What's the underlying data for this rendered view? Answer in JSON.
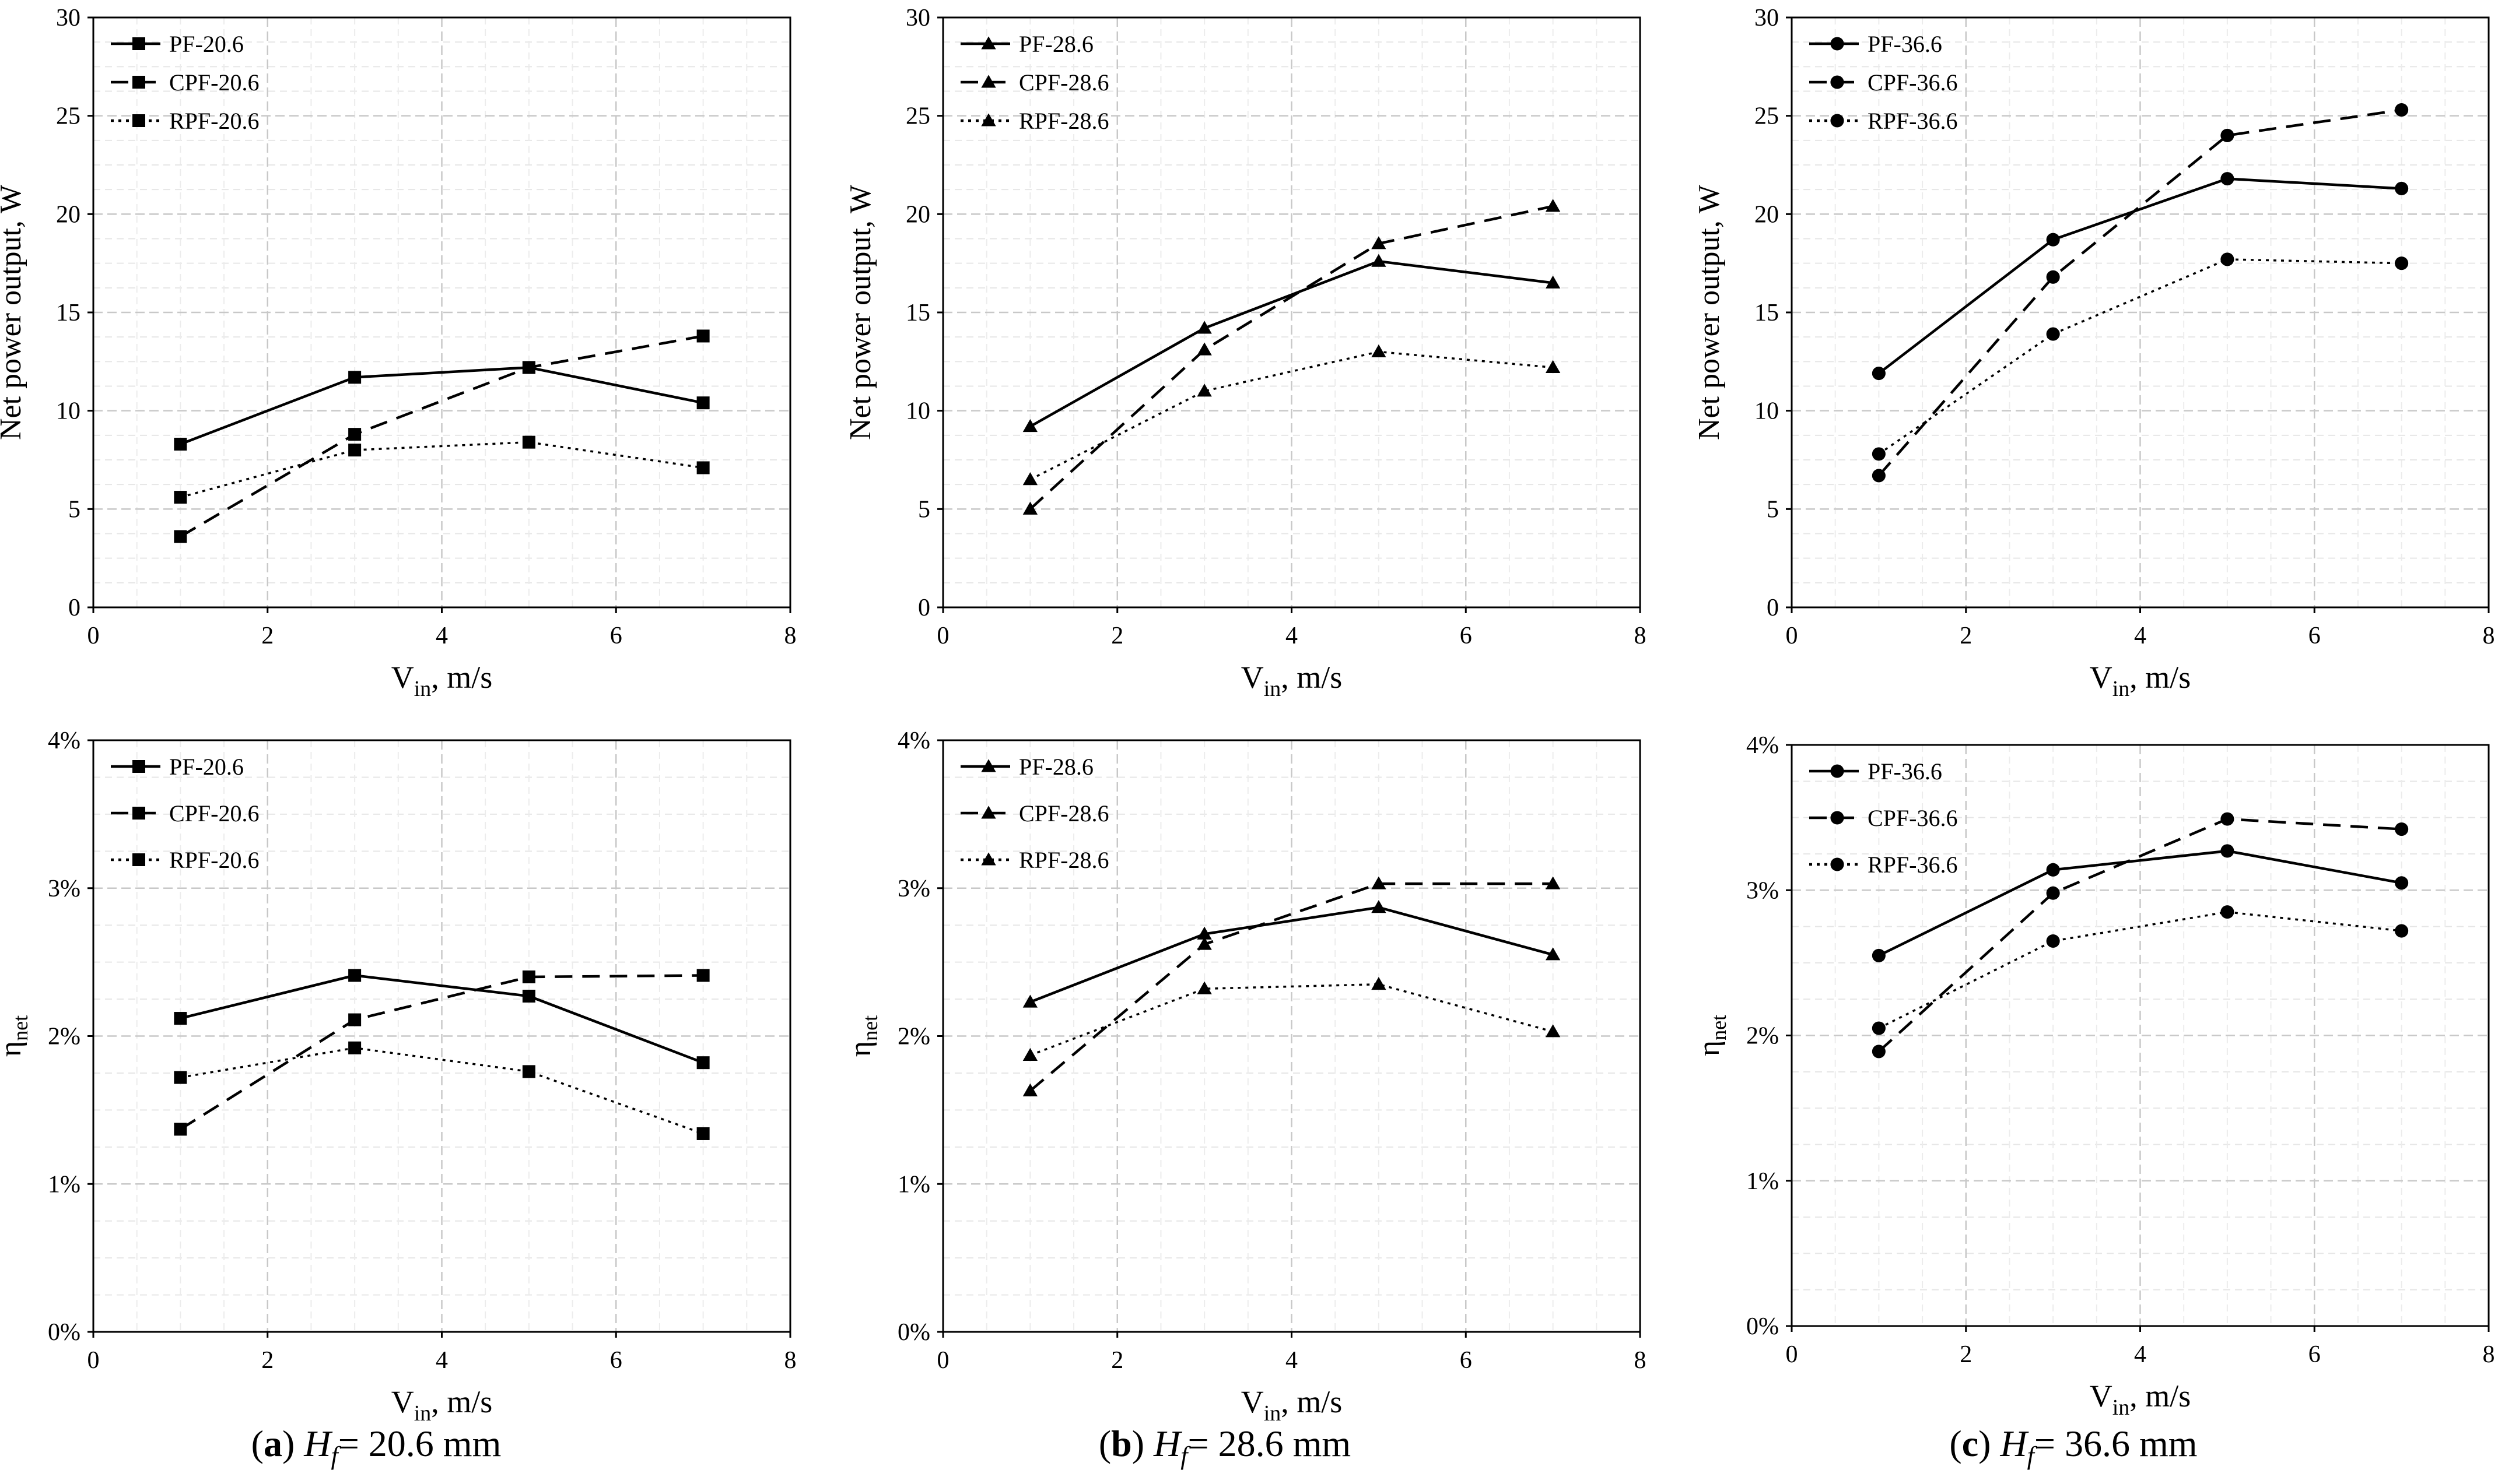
{
  "chart_data": [
    {
      "type": "line",
      "panel": "a-top",
      "xlabel": "V",
      "xlabel_sub": "in",
      "xlabel_unit": ", m/s",
      "ylabel": "Net power output, W",
      "xlim": [
        0,
        8
      ],
      "ylim": [
        0,
        30
      ],
      "xticks": [
        "0",
        "2",
        "4",
        "6",
        "8"
      ],
      "yticks": [
        "0",
        "5",
        "10",
        "15",
        "20",
        "25",
        "30"
      ],
      "x": [
        1,
        3,
        5,
        7
      ],
      "marker": "square",
      "legend": "top-left",
      "series": [
        {
          "name": "PF-20.6",
          "dash": "solid",
          "values": [
            8.3,
            11.7,
            12.2,
            10.4
          ]
        },
        {
          "name": "CPF-20.6",
          "dash": "dashed",
          "values": [
            3.6,
            8.8,
            12.2,
            13.8
          ]
        },
        {
          "name": "RPF-20.6",
          "dash": "dotted",
          "values": [
            5.6,
            8.0,
            8.4,
            7.1
          ]
        }
      ]
    },
    {
      "type": "line",
      "panel": "b-top",
      "xlabel": "V",
      "xlabel_sub": "in",
      "xlabel_unit": ", m/s",
      "ylabel": "Net power output, W",
      "xlim": [
        0,
        8
      ],
      "ylim": [
        0,
        30
      ],
      "xticks": [
        "0",
        "2",
        "4",
        "6",
        "8"
      ],
      "yticks": [
        "0",
        "5",
        "10",
        "15",
        "20",
        "25",
        "30"
      ],
      "x": [
        1,
        3,
        5,
        7
      ],
      "marker": "triangle",
      "legend": "top-left",
      "series": [
        {
          "name": "PF-28.6",
          "dash": "solid",
          "values": [
            9.2,
            14.2,
            17.6,
            16.5
          ]
        },
        {
          "name": "CPF-28.6",
          "dash": "dashed",
          "values": [
            5.0,
            13.1,
            18.5,
            20.4
          ]
        },
        {
          "name": "RPF-28.6",
          "dash": "dotted",
          "values": [
            6.5,
            11.0,
            13.0,
            12.2
          ]
        }
      ]
    },
    {
      "type": "line",
      "panel": "c-top",
      "xlabel": "V",
      "xlabel_sub": "in",
      "xlabel_unit": ", m/s",
      "ylabel": "Net power output, W",
      "xlim": [
        0,
        8
      ],
      "ylim": [
        0,
        30
      ],
      "xticks": [
        "0",
        "2",
        "4",
        "6",
        "8"
      ],
      "yticks": [
        "0",
        "5",
        "10",
        "15",
        "20",
        "25",
        "30"
      ],
      "x": [
        1,
        3,
        5,
        7
      ],
      "marker": "circle",
      "legend": "top-left",
      "series": [
        {
          "name": "PF-36.6",
          "dash": "solid",
          "values": [
            11.9,
            18.7,
            21.8,
            21.3
          ]
        },
        {
          "name": "CPF-36.6",
          "dash": "dashed",
          "values": [
            6.7,
            16.8,
            24.0,
            25.3
          ]
        },
        {
          "name": "RPF-36.6",
          "dash": "dotted",
          "values": [
            7.8,
            13.9,
            17.7,
            17.5
          ]
        }
      ]
    },
    {
      "type": "line",
      "panel": "a-bottom",
      "xlabel": "V",
      "xlabel_sub": "in",
      "xlabel_unit": ", m/s",
      "ylabel": "η",
      "ylabel_sub": "net",
      "xlim": [
        0,
        8
      ],
      "ylim": [
        0,
        4
      ],
      "xticks": [
        "0",
        "2",
        "4",
        "6",
        "8"
      ],
      "yticks": [
        "0%",
        "1%",
        "2%",
        "3%",
        "4%"
      ],
      "x": [
        1,
        3,
        5,
        7
      ],
      "marker": "square",
      "legend": "top-left",
      "series": [
        {
          "name": "PF-20.6",
          "dash": "solid",
          "values": [
            2.12,
            2.41,
            2.27,
            1.82
          ]
        },
        {
          "name": "CPF-20.6",
          "dash": "dashed",
          "values": [
            1.37,
            2.11,
            2.4,
            2.41
          ]
        },
        {
          "name": "RPF-20.6",
          "dash": "dotted",
          "values": [
            1.72,
            1.92,
            1.76,
            1.34
          ]
        }
      ]
    },
    {
      "type": "line",
      "panel": "b-bottom",
      "xlabel": "V",
      "xlabel_sub": "in",
      "xlabel_unit": ", m/s",
      "ylabel": "η",
      "ylabel_sub": "net",
      "xlim": [
        0,
        8
      ],
      "ylim": [
        0,
        4
      ],
      "xticks": [
        "0",
        "2",
        "4",
        "6",
        "8"
      ],
      "yticks": [
        "0%",
        "1%",
        "2%",
        "3%",
        "4%"
      ],
      "x": [
        1,
        3,
        5,
        7
      ],
      "marker": "triangle",
      "legend": "top-left",
      "series": [
        {
          "name": "PF-28.6",
          "dash": "solid",
          "values": [
            2.23,
            2.69,
            2.87,
            2.55
          ]
        },
        {
          "name": "CPF-28.6",
          "dash": "dashed",
          "values": [
            1.63,
            2.62,
            3.03,
            3.03
          ]
        },
        {
          "name": "RPF-28.6",
          "dash": "dotted",
          "values": [
            1.87,
            2.32,
            2.35,
            2.03
          ]
        }
      ]
    },
    {
      "type": "line",
      "panel": "c-bottom",
      "xlabel": "V",
      "xlabel_sub": "in",
      "xlabel_unit": ", m/s",
      "ylabel": "η",
      "ylabel_sub": "net",
      "xlim": [
        0,
        8
      ],
      "ylim": [
        0,
        4
      ],
      "xticks": [
        "0",
        "2",
        "4",
        "6",
        "8"
      ],
      "yticks": [
        "0%",
        "1%",
        "2%",
        "3%",
        "4%"
      ],
      "x": [
        1,
        3,
        5,
        7
      ],
      "marker": "circle",
      "legend": "top-left",
      "series": [
        {
          "name": "PF-36.6",
          "dash": "solid",
          "values": [
            2.55,
            3.14,
            3.27,
            3.05
          ]
        },
        {
          "name": "CPF-36.6",
          "dash": "dashed",
          "values": [
            1.89,
            2.98,
            3.49,
            3.42
          ]
        },
        {
          "name": "RPF-36.6",
          "dash": "dotted",
          "values": [
            2.05,
            2.65,
            2.85,
            2.72
          ]
        }
      ]
    }
  ],
  "captions": [
    {
      "letter": "a",
      "prefix": "H",
      "sub": "f",
      "text": "= 20.6 mm"
    },
    {
      "letter": "b",
      "prefix": "H",
      "sub": "f",
      "text": "= 28.6 mm"
    },
    {
      "letter": "c",
      "prefix": "H",
      "sub": "f",
      "text": "= 36.6 mm"
    }
  ]
}
